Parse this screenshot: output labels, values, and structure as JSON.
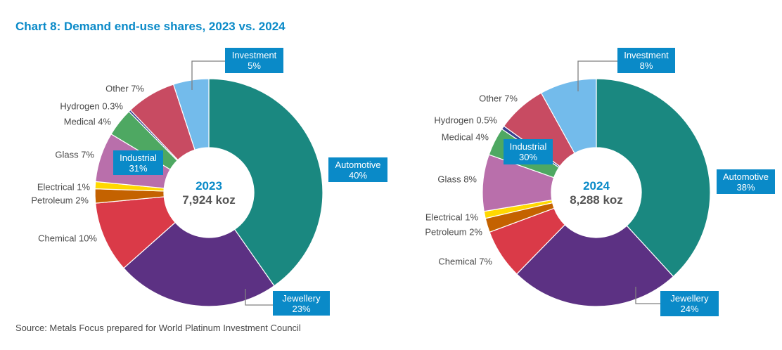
{
  "chart_data": [
    {
      "type": "pie",
      "variant": "donut",
      "title": "Chart 8: Demand end-use shares, 2023 vs. 2024",
      "center_label": "2023",
      "center_value": "7,924 koz",
      "unit": "%",
      "segments": [
        {
          "name": "Automotive",
          "value": 40,
          "color": "#1A8880",
          "label": "Automotive 40%",
          "callout": true
        },
        {
          "name": "Jewellery",
          "value": 23,
          "color": "#5C3183",
          "label": "Jewellery 23%",
          "callout": true
        },
        {
          "name": "Chemical",
          "value": 10,
          "color": "#DA3A48",
          "label": "Chemical 10%",
          "callout": false
        },
        {
          "name": "Petroleum",
          "value": 2,
          "color": "#C46200",
          "label": "Petroleum 2%",
          "callout": false
        },
        {
          "name": "Electrical",
          "value": 1,
          "color": "#FFD800",
          "label": "Electrical 1%",
          "callout": false
        },
        {
          "name": "Glass",
          "value": 7,
          "color": "#B96FAB",
          "label": "Glass 7%",
          "callout": false
        },
        {
          "name": "Medical",
          "value": 4,
          "color": "#4EA862",
          "label": "Medical 4%",
          "callout": false
        },
        {
          "name": "Hydrogen",
          "value": 0.3,
          "color": "#3A3F8F",
          "label": "Hydrogen 0.3%",
          "callout": false
        },
        {
          "name": "Other",
          "value": 7,
          "color": "#C84B62",
          "label": "Other 7%",
          "callout": false
        },
        {
          "name": "Investment",
          "value": 5,
          "color": "#73BBEB",
          "label": "Investment 5%",
          "callout": true
        }
      ],
      "group_callouts": [
        {
          "name": "Industrial",
          "value": 31,
          "label": "Industrial 31%"
        }
      ]
    },
    {
      "type": "pie",
      "variant": "donut",
      "title": "Chart 8: Demand end-use shares, 2023 vs. 2024",
      "center_label": "2024",
      "center_value": "8,288 koz",
      "unit": "%",
      "segments": [
        {
          "name": "Automotive",
          "value": 38,
          "color": "#1A8880",
          "label": "Automotive 38%",
          "callout": true
        },
        {
          "name": "Jewellery",
          "value": 24,
          "color": "#5C3183",
          "label": "Jewellery 24%",
          "callout": true
        },
        {
          "name": "Chemical",
          "value": 7,
          "color": "#DA3A48",
          "label": "Chemical 7%",
          "callout": false
        },
        {
          "name": "Petroleum",
          "value": 2,
          "color": "#C46200",
          "label": "Petroleum 2%",
          "callout": false
        },
        {
          "name": "Electrical",
          "value": 1,
          "color": "#FFD800",
          "label": "Electrical 1%",
          "callout": false
        },
        {
          "name": "Glass",
          "value": 8,
          "color": "#B96FAB",
          "label": "Glass 8%",
          "callout": false
        },
        {
          "name": "Medical",
          "value": 4,
          "color": "#4EA862",
          "label": "Medical 4%",
          "callout": false
        },
        {
          "name": "Hydrogen",
          "value": 0.5,
          "color": "#3A3F8F",
          "label": "Hydrogen 0.5%",
          "callout": false
        },
        {
          "name": "Other",
          "value": 7,
          "color": "#C84B62",
          "label": "Other 7%",
          "callout": false
        },
        {
          "name": "Investment",
          "value": 8,
          "color": "#73BBEB",
          "label": "Investment 8%",
          "callout": true
        }
      ],
      "group_callouts": [
        {
          "name": "Industrial",
          "value": 30,
          "label": "Industrial 30%"
        }
      ]
    }
  ],
  "title": "Chart 8: Demand end-use shares, 2023 vs. 2024",
  "source": "Source: Metals Focus prepared for World Platinum Investment Council",
  "callouts": {
    "y2023": {
      "investment": [
        "Investment",
        "5%"
      ],
      "automotive": [
        "Automotive",
        "40%"
      ],
      "jewellery": [
        "Jewellery",
        "23%"
      ],
      "industrial": [
        "Industrial",
        "31%"
      ]
    },
    "y2024": {
      "investment": [
        "Investment",
        "8%"
      ],
      "automotive": [
        "Automotive",
        "38%"
      ],
      "jewellery": [
        "Jewellery",
        "24%"
      ],
      "industrial": [
        "Industrial",
        "30%"
      ]
    }
  }
}
